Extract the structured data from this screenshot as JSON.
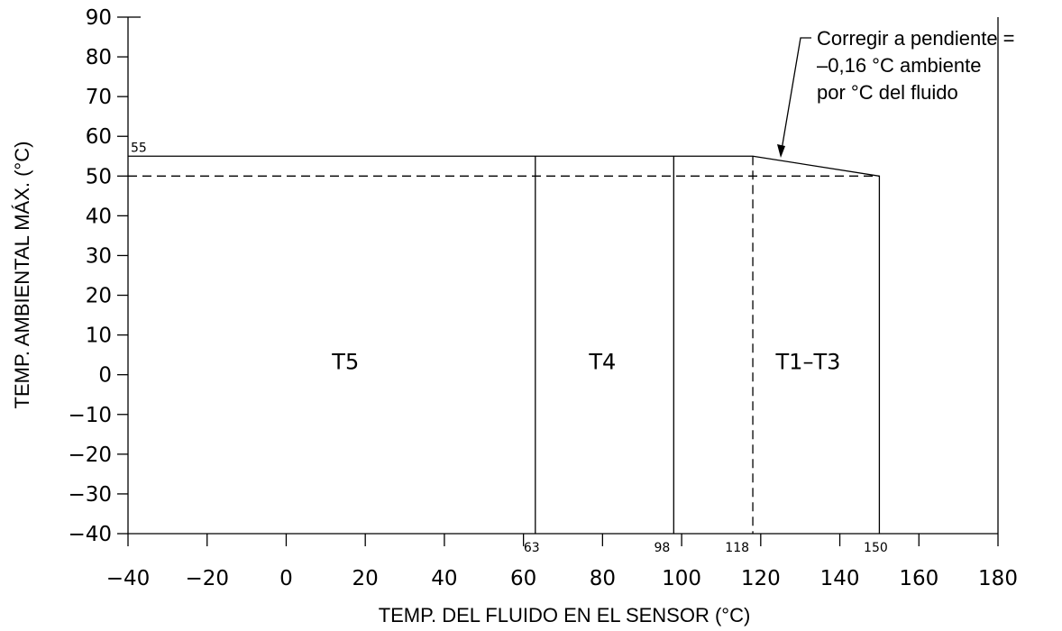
{
  "chart_data": {
    "type": "area",
    "xlabel": "TEMP. DEL FLUIDO EN EL SENSOR (°C)",
    "ylabel": "TEMP. AMBIENTAL MÁX. (°C)",
    "xlim": [
      -40,
      180
    ],
    "ylim": [
      -40,
      90
    ],
    "x_ticks": [
      "-40",
      "-20",
      "0",
      "20",
      "40",
      "60",
      "80",
      "100",
      "120",
      "140",
      "160",
      "180"
    ],
    "y_ticks": [
      "-40",
      "-30",
      "-20",
      "-10",
      "0",
      "10",
      "20",
      "30",
      "40",
      "50",
      "60",
      "70",
      "80",
      "90"
    ],
    "boundary": [
      {
        "x": -40,
        "y": 55
      },
      {
        "x": 118,
        "y": 55
      },
      {
        "x": 150,
        "y": 50
      },
      {
        "x": 150,
        "y": -40
      }
    ],
    "zone_dividers": [
      63,
      98
    ],
    "reference_lines": {
      "y50": 50,
      "x118": 118
    },
    "marked_values": {
      "y55": "55",
      "x63": "63",
      "x98": "98",
      "x118": "118",
      "x150": "150"
    },
    "zones": [
      {
        "label": "T5",
        "x": 15,
        "y": 0
      },
      {
        "label": "T4",
        "x": 80,
        "y": 0
      },
      {
        "label": "T1–T3",
        "x": 132,
        "y": 0
      }
    ],
    "annotation": {
      "lines": [
        "Corregir a pendiente =",
        "–0,16 °C ambiente",
        "por °C del fluido"
      ]
    },
    "grid": false
  }
}
